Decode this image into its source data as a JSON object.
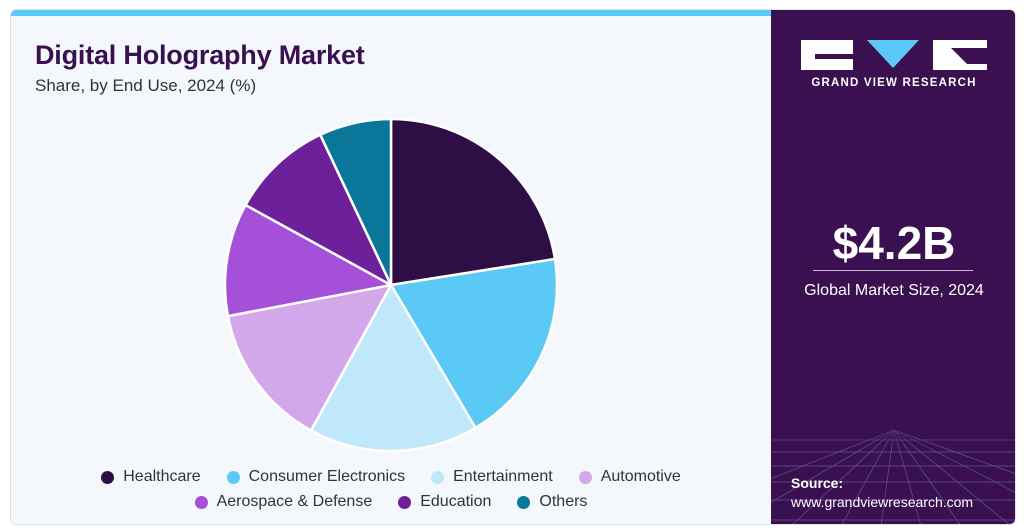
{
  "chart_data": {
    "type": "pie",
    "title": "Digital Holography Market",
    "subtitle": "Share, by End Use, 2024 (%)",
    "categories": [
      "Healthcare",
      "Consumer Electronics",
      "Entertainment",
      "Automotive",
      "Aerospace & Defense",
      "Education",
      "Others"
    ],
    "values": [
      22.5,
      19.0,
      16.5,
      14.0,
      11.0,
      10.0,
      7.0
    ],
    "colors": [
      "#2d0f45",
      "#5bc9f5",
      "#bfe8fa",
      "#d3a8ea",
      "#a550d9",
      "#6d2099",
      "#0a7699"
    ],
    "legend_position": "bottom"
  },
  "sidebar": {
    "brand": "GRAND VIEW RESEARCH",
    "market_value": "$4.2B",
    "market_caption": "Global Market Size, 2024",
    "source_label": "Source:",
    "source_url": "www.grandviewresearch.com"
  },
  "icons": {
    "logo": "grand-view-research-logo"
  }
}
